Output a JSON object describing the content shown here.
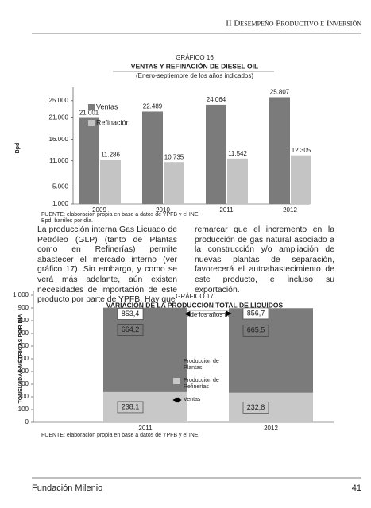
{
  "header": {
    "section": "II Desempeño Productivo e Inversión"
  },
  "chart_data": [
    {
      "type": "bar",
      "label": "GRÁFICO 16",
      "title": "VENTAS Y REFINACIÓN DE DIESEL OIL",
      "subtitle": "(Enero-septiembre de los años indicados)",
      "y_label": "Bpd",
      "categories": [
        "2009",
        "2010",
        "2011",
        "2012"
      ],
      "series": [
        {
          "name": "Ventas",
          "color": "#7b7b7b",
          "values": [
            21001,
            22489,
            24064,
            25807
          ],
          "value_labels": [
            "21.001",
            "22.489",
            "24.064",
            "25.807"
          ]
        },
        {
          "name": "Refinación",
          "color": "#c4c4c4",
          "values": [
            11286,
            10735,
            11542,
            12305
          ],
          "value_labels": [
            "11.286",
            "10.735",
            "11.542",
            "12.305"
          ]
        }
      ],
      "ylim": [
        1000,
        27000
      ],
      "yticks": [
        {
          "value": 1000,
          "label": "1.000"
        },
        {
          "value": 5000,
          "label": "5.000"
        },
        {
          "value": 11000,
          "label": "11.000"
        },
        {
          "value": 16000,
          "label": "16.000"
        },
        {
          "value": 21000,
          "label": "21.000"
        },
        {
          "value": 25000,
          "label": "25.000"
        }
      ],
      "sources": [
        "FUENTE: elaboración propia en base a datos de YPFB y el INE.",
        "Bpd: barriles por día."
      ]
    },
    {
      "type": "stacked-bar",
      "label": "GRÁFICO 17",
      "title": "VARIACIÓN DE LA PRODUCCIÓN TOTAL DE LÍQUIDOS",
      "subtitle": "(Enero-septiembre de los años indicados)",
      "y_label": "TONELADAS MÉTRICAS POR DÍA",
      "categories": [
        "2011",
        "2012"
      ],
      "series": [
        {
          "name": "Producción de Refinerías",
          "color": "#c8c8c8",
          "values": [
            238.1,
            232.8
          ],
          "value_labels": [
            "238,1",
            "232,8"
          ]
        },
        {
          "name": "Producción de Plantas",
          "color": "#7b7b7b",
          "values": [
            664.2,
            665.5
          ],
          "value_labels": [
            "664,2",
            "665,5"
          ]
        },
        {
          "name": "Ventas",
          "type": "line",
          "color": "#000000",
          "values": [
            853.4,
            856.7
          ],
          "value_labels": [
            "853,4",
            "856,7"
          ]
        }
      ],
      "ylim": [
        0,
        1000
      ],
      "yticks": [
        0,
        100,
        200,
        300,
        400,
        500,
        600,
        700,
        800,
        900,
        {
          "value": 1000,
          "label": "1.000"
        }
      ],
      "sources": [
        "FUENTE: elaboración propia en base a datos de YPFB y el INE."
      ]
    }
  ],
  "body": {
    "columns": [
      "La producción interna Gas Licuado de Petróleo (GLP) (tanto de Plantas como en Refinerías) permite abastecer el mercado interno (ver gráfico 17). Sin embargo, y como se verá más adelante, aún existen necesidades de importación de este producto por parte de YPFB. Hay que",
      "remarcar que el incremento en la producción de gas natural asociado a la construcción y/o ampliación de nuevas plantas de separación, favorecerá el autoabastecimiento de este producto, e incluso su exportación."
    ]
  },
  "footer": {
    "publisher": "Fundación Milenio",
    "page": "41"
  }
}
